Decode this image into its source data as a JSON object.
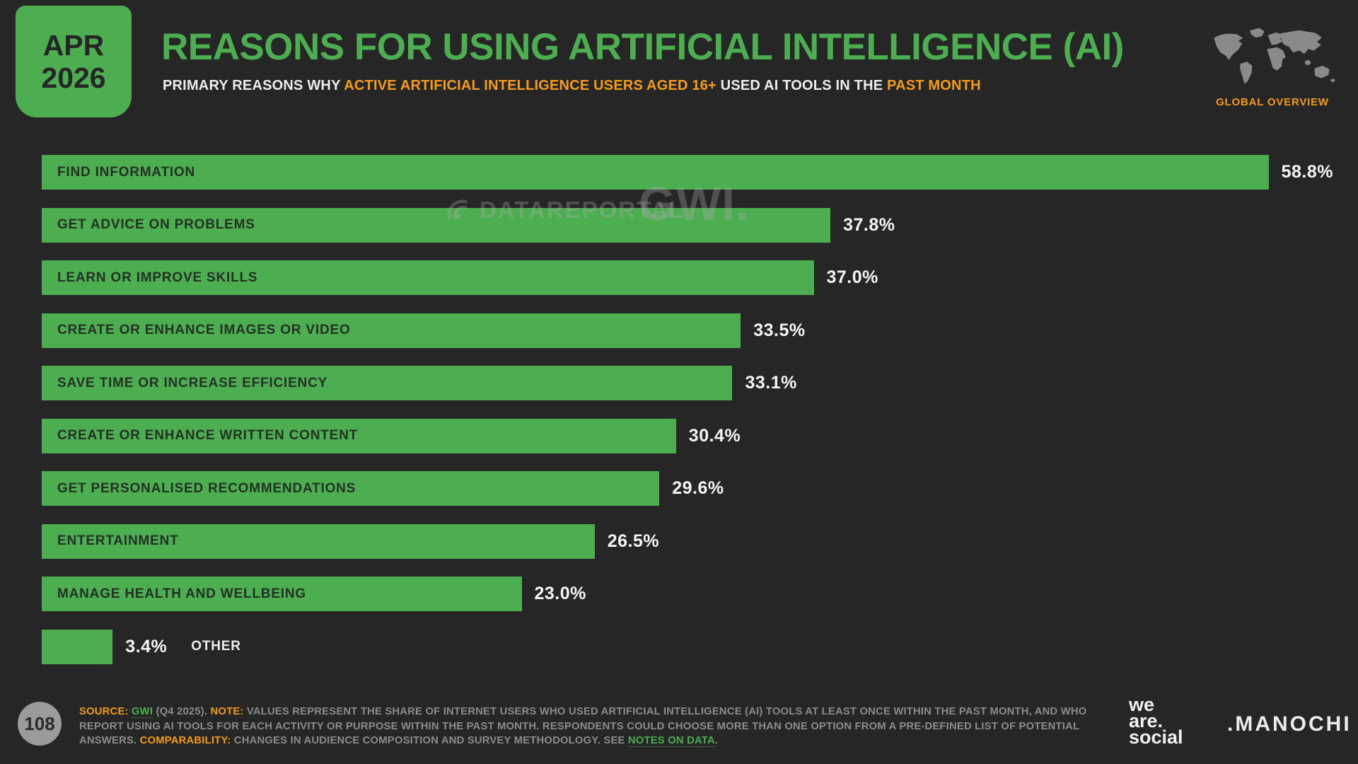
{
  "header": {
    "date_line1": "APR",
    "date_line2": "2026",
    "title": "REASONS FOR USING ARTIFICIAL INTELLIGENCE (AI)",
    "subtitle_segments": [
      {
        "text": "PRIMARY REASONS WHY ",
        "color": "white"
      },
      {
        "text": "ACTIVE ARTIFICIAL INTELLIGENCE USERS AGED 16+",
        "color": "orange"
      },
      {
        "text": " USED AI TOOLS IN THE ",
        "color": "white"
      },
      {
        "text": "PAST MONTH",
        "color": "orange"
      }
    ],
    "scope_label": "GLOBAL OVERVIEW"
  },
  "watermarks": {
    "datareportal": "DATAREPORTAL",
    "gwi": "GWI."
  },
  "chart_data": {
    "type": "bar",
    "orientation": "horizontal",
    "title": "Reasons for using artificial intelligence (AI)",
    "unit": "percent",
    "xlim": [
      0,
      60
    ],
    "grid": false,
    "bar_color": "#4cae51",
    "categories": [
      "FIND INFORMATION",
      "GET ADVICE ON PROBLEMS",
      "LEARN OR IMPROVE SKILLS",
      "CREATE OR ENHANCE IMAGES OR VIDEO",
      "SAVE TIME OR INCREASE EFFICIENCY",
      "CREATE OR ENHANCE WRITTEN CONTENT",
      "GET PERSONALISED RECOMMENDATIONS",
      "ENTERTAINMENT",
      "MANAGE HEALTH AND WELLBEING",
      "OTHER"
    ],
    "values": [
      58.8,
      37.8,
      37.0,
      33.5,
      33.1,
      30.4,
      29.6,
      26.5,
      23.0,
      3.4
    ],
    "value_labels": [
      "58.8%",
      "37.8%",
      "37.0%",
      "33.5%",
      "33.1%",
      "30.4%",
      "29.6%",
      "26.5%",
      "23.0%",
      "3.4%"
    ]
  },
  "footer": {
    "page_number": "108",
    "note_segments": [
      {
        "text": "SOURCE:",
        "style": "orange"
      },
      {
        "text": " ",
        "style": "gray"
      },
      {
        "text": "GWI",
        "style": "link"
      },
      {
        "text": " (Q4 2025). ",
        "style": "gray"
      },
      {
        "text": "NOTE:",
        "style": "orange"
      },
      {
        "text": " VALUES REPRESENT THE SHARE OF INTERNET USERS WHO USED ARTIFICIAL INTELLIGENCE (AI) TOOLS AT LEAST ONCE WITHIN THE PAST MONTH, AND WHO REPORT USING AI TOOLS FOR EACH ACTIVITY OR PURPOSE WITHIN THE PAST MONTH. RESPONDENTS COULD CHOOSE MORE THAN ONE OPTION FROM A PRE-DEFINED LIST OF POTENTIAL ANSWERS. ",
        "style": "gray"
      },
      {
        "text": "COMPARABILITY:",
        "style": "orange"
      },
      {
        "text": " CHANGES IN AUDIENCE COMPOSITION AND SURVEY METHODOLOGY. SEE ",
        "style": "gray"
      },
      {
        "text": "NOTES ON DATA",
        "style": "link"
      },
      {
        "text": ".",
        "style": "gray"
      }
    ],
    "logos": {
      "we_are_social_lines": [
        "we",
        "are.",
        "social"
      ],
      "manochi": ".MANOCHI"
    }
  },
  "colors": {
    "background": "#262626",
    "accent_green": "#4cae51",
    "accent_orange": "#f59c1c",
    "footnote_gray": "#8c8c8c",
    "value_text": "#f5f5f5",
    "bar_label_text": "#243024",
    "map_gray": "#8a8a8a"
  }
}
